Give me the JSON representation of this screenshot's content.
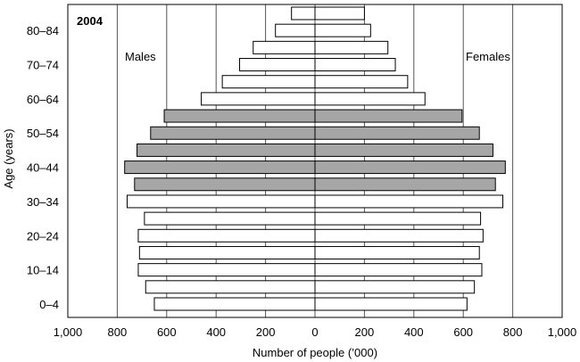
{
  "chart_data": {
    "type": "bar",
    "orientation": "horizontal",
    "subtype": "population-pyramid",
    "year_label": "2004",
    "left_label": "Males",
    "right_label": "Females",
    "xlabel": "Number of people (’000)",
    "ylabel": "Age (years)",
    "x_tick_labels": [
      "1,000",
      "800",
      "600",
      "400",
      "200",
      "0",
      "200",
      "400",
      "600",
      "800",
      "1,000"
    ],
    "xlim": [
      -1000,
      1000
    ],
    "grid": "vertical",
    "categories": [
      "0–4",
      "5–9",
      "10–14",
      "15–19",
      "20–24",
      "25–29",
      "30–34",
      "35–39",
      "40–44",
      "45–49",
      "50–54",
      "55–59",
      "60–64",
      "65–69",
      "70–74",
      "75–79",
      "80–84",
      "85+"
    ],
    "y_tick_labels": [
      "0–4",
      "10–14",
      "20–24",
      "30–34",
      "40–44",
      "50–54",
      "60–64",
      "70–74",
      "80–84"
    ],
    "series": [
      {
        "name": "Males",
        "values": [
          650,
          685,
          715,
          710,
          715,
          690,
          760,
          730,
          770,
          720,
          665,
          610,
          460,
          375,
          305,
          250,
          160,
          95
        ]
      },
      {
        "name": "Females",
        "values": [
          615,
          645,
          675,
          665,
          680,
          670,
          760,
          730,
          770,
          720,
          665,
          595,
          445,
          375,
          325,
          295,
          225,
          200
        ]
      }
    ],
    "highlighted_categories": [
      "35–39",
      "40–44",
      "45–49",
      "50–54",
      "55–59"
    ],
    "colors": {
      "highlight": "#a6a6a6",
      "normal": "#ffffff",
      "grid": "#555555"
    }
  }
}
